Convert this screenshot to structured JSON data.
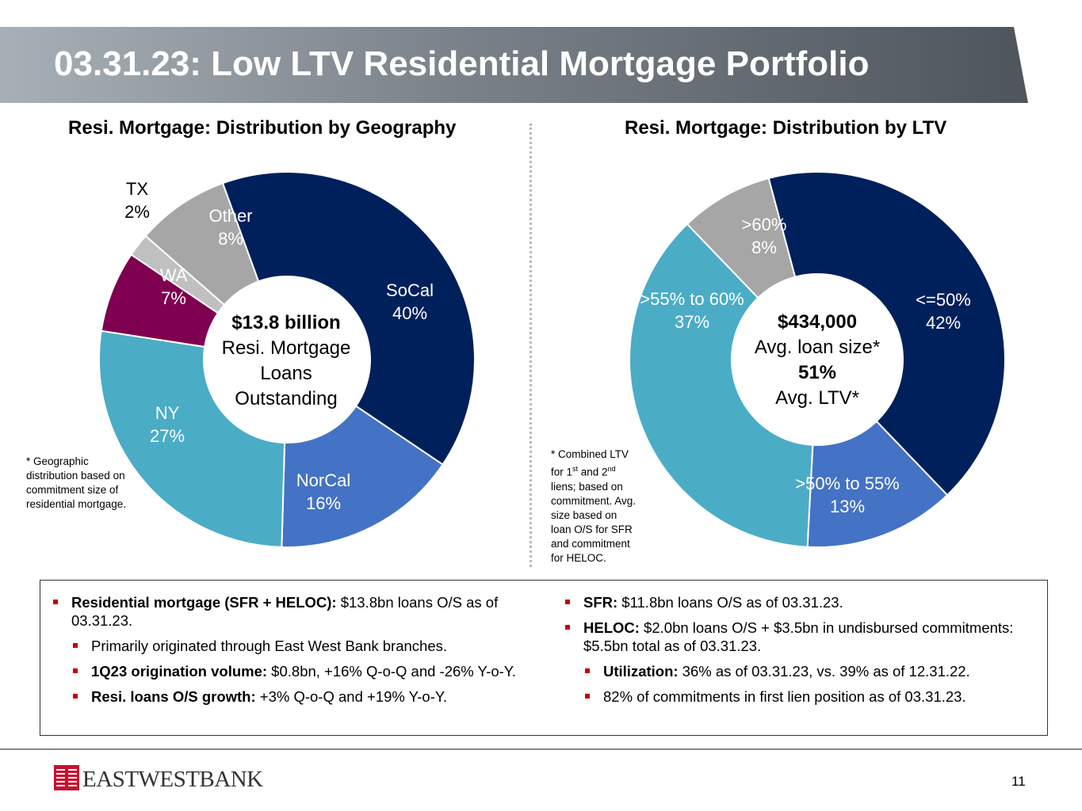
{
  "header": {
    "title": "03.31.23: Low LTV Residential Mortgage Portfolio"
  },
  "chart_data": [
    {
      "type": "pie",
      "title": "Resi. Mortgage: Distribution by Geography",
      "categories": [
        "SoCal",
        "NorCal",
        "NY",
        "WA",
        "TX",
        "Other"
      ],
      "values": [
        40,
        16,
        27,
        7,
        2,
        8
      ],
      "value_labels": [
        "40%",
        "16%",
        "27%",
        "7%",
        "2%",
        "8%"
      ],
      "colors": [
        "#00205b",
        "#4472c4",
        "#4bacc6",
        "#7f0050",
        "#c0c0c0",
        "#a6a6a6"
      ],
      "center": {
        "value": "$13.8 billion",
        "line1": "Resi. Mortgage",
        "line2": "Loans",
        "line3": "Outstanding"
      },
      "footnote": "* Geographic distribution based on commitment size of residential mortgage."
    },
    {
      "type": "pie",
      "title": "Resi. Mortgage: Distribution by LTV",
      "categories": [
        "<=50%",
        ">50% to 55%",
        ">55% to 60%",
        ">60%"
      ],
      "values": [
        42,
        13,
        37,
        8
      ],
      "value_labels": [
        "42%",
        "13%",
        "37%",
        "8%"
      ],
      "colors": [
        "#00205b",
        "#4472c4",
        "#4bacc6",
        "#a6a6a6"
      ],
      "center": {
        "value1": "$434,000",
        "label1": "Avg. loan size*",
        "value2": "51%",
        "label2": "Avg. LTV*"
      },
      "footnote": {
        "l1": "* Combined LTV",
        "l2a": "for 1",
        "l2sup1": "st",
        "l2b": " and 2",
        "l2sup2": "nd",
        "l3": "liens; based on",
        "l4": "commitment. Avg.",
        "l5": "size based on",
        "l6": "loan O/S for SFR",
        "l7": "and commitment",
        "l8": "for HELOC."
      }
    }
  ],
  "bullets": {
    "left": [
      {
        "bold": "Residential mortgage (SFR + HELOC):",
        "text": " $13.8bn loans O/S as of 03.31.23."
      },
      {
        "bold": "",
        "text": "Primarily originated through East West Bank branches."
      },
      {
        "bold": "1Q23 origination volume:",
        "text": " $0.8bn, +16% Q-o-Q and -26% Y-o-Y."
      },
      {
        "bold": "Resi. loans O/S growth:",
        "text": " +3% Q-o-Q and +19% Y-o-Y."
      }
    ],
    "right": [
      {
        "bold": "SFR:",
        "text": " $11.8bn loans O/S as of 03.31.23."
      },
      {
        "bold": "HELOC:",
        "text": " $2.0bn loans O/S + $3.5bn in undisbursed commitments: $5.5bn total as of 03.31.23."
      },
      {
        "bold": "Utilization:",
        "text": " 36% as of 03.31.23, vs. 39% as of 12.31.22."
      },
      {
        "bold": "",
        "text": "82% of commitments in first lien position as of 03.31.23."
      }
    ]
  },
  "footer": {
    "logo_text": "EASTWESTBANK",
    "page_number": "11"
  }
}
